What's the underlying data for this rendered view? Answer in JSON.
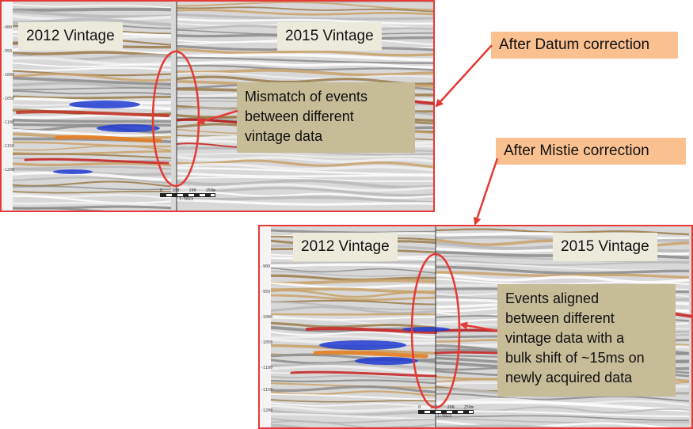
{
  "panel_top": {
    "left_label": "2012 Vintage",
    "right_label": "2015 Vintage",
    "note": [
      "Mismatch of events",
      "between different",
      "vintage data"
    ],
    "depth_ticks": [
      "-900",
      "-950",
      "-1000",
      "-1050",
      "-1100",
      "-1150",
      "-1200"
    ],
    "scale": {
      "ticks": [
        "0",
        "100",
        "200",
        "250m"
      ],
      "ratio": "1:5023"
    }
  },
  "panel_bottom": {
    "left_label": "2012 Vintage",
    "right_label": "2015 Vintage",
    "note": [
      "Events aligned",
      "between different",
      "vintage data with a",
      "bulk shift of ~15ms on",
      "newly acquired data"
    ],
    "depth_ticks": [
      "-900",
      "-950",
      "-1000",
      "-1050",
      "-1100",
      "-1150",
      "-1200"
    ],
    "scale": {
      "ticks": [
        "0",
        "100",
        "200",
        "250m"
      ],
      "ratio": "1:5023"
    }
  },
  "callouts": {
    "datum": "After Datum correction",
    "mistie": "After Mistie correction"
  },
  "colors": {
    "frame": "#e53935",
    "callout_fill": "#fac08f",
    "note_fill": "#c6bc97",
    "label_fill": "#ecebdb"
  }
}
